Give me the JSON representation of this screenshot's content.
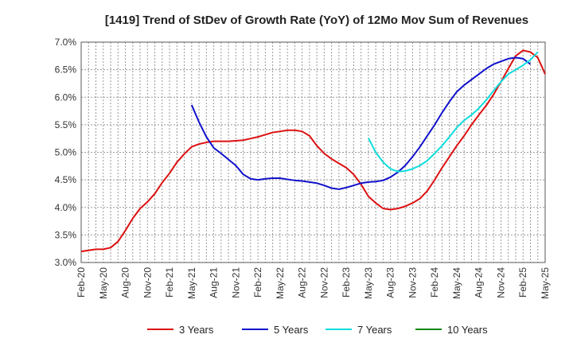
{
  "chart_data": {
    "type": "line",
    "title": "[1419]  Trend of StDev of Growth Rate (YoY) of 12Mo Mov Sum of Revenues",
    "xlabel": "",
    "ylabel": "",
    "ylim": [
      3.0,
      7.0
    ],
    "y_ticks": [
      "3.0%",
      "3.5%",
      "4.0%",
      "4.5%",
      "5.0%",
      "5.5%",
      "6.0%",
      "6.5%",
      "7.0%"
    ],
    "x_ticks": [
      "Feb-20",
      "May-20",
      "Aug-20",
      "Nov-20",
      "Feb-21",
      "May-21",
      "Aug-21",
      "Nov-21",
      "Feb-22",
      "May-22",
      "Aug-22",
      "Nov-22",
      "Feb-23",
      "May-23",
      "Aug-23",
      "Nov-23",
      "Feb-24",
      "May-24",
      "Aug-24",
      "Nov-24",
      "Feb-25",
      "May-25"
    ],
    "x_start": "Feb-20",
    "grid": true,
    "legend_position": "bottom",
    "series": [
      {
        "name": "3 Years",
        "color": "#dd1111",
        "start_index": 0,
        "values": [
          3.2,
          3.22,
          3.24,
          3.24,
          3.27,
          3.38,
          3.58,
          3.8,
          3.98,
          4.1,
          4.25,
          4.45,
          4.62,
          4.82,
          4.97,
          5.1,
          5.15,
          5.18,
          5.2,
          5.2,
          5.2,
          5.21,
          5.22,
          5.25,
          5.28,
          5.32,
          5.36,
          5.38,
          5.4,
          5.4,
          5.38,
          5.3,
          5.12,
          4.98,
          4.88,
          4.8,
          4.72,
          4.6,
          4.42,
          4.2,
          4.08,
          3.98,
          3.96,
          3.98,
          4.02,
          4.08,
          4.16,
          4.3,
          4.5,
          4.72,
          4.92,
          5.12,
          5.3,
          5.5,
          5.68,
          5.85,
          6.05,
          6.28,
          6.52,
          6.75,
          6.85,
          6.82,
          6.72,
          6.42
        ]
      },
      {
        "name": "5 Years",
        "color": "#1111cc",
        "start_index": 15,
        "values": [
          5.86,
          5.55,
          5.28,
          5.08,
          4.98,
          4.87,
          4.76,
          4.6,
          4.52,
          4.5,
          4.52,
          4.53,
          4.53,
          4.51,
          4.49,
          4.48,
          4.46,
          4.44,
          4.4,
          4.35,
          4.33,
          4.36,
          4.4,
          4.44,
          4.46,
          4.47,
          4.49,
          4.55,
          4.64,
          4.76,
          4.92,
          5.1,
          5.3,
          5.5,
          5.72,
          5.92,
          6.1,
          6.22,
          6.32,
          6.42,
          6.52,
          6.6,
          6.65,
          6.7,
          6.72,
          6.7,
          6.6
        ]
      },
      {
        "name": "7 Years",
        "color": "#11dddd",
        "start_index": 39,
        "values": [
          5.26,
          5.0,
          4.82,
          4.7,
          4.65,
          4.66,
          4.7,
          4.76,
          4.85,
          4.98,
          5.12,
          5.28,
          5.45,
          5.58,
          5.68,
          5.8,
          5.95,
          6.12,
          6.28,
          6.42,
          6.5,
          6.58,
          6.68,
          6.82
        ]
      },
      {
        "name": "10 Years",
        "color": "#118811",
        "start_index": 0,
        "values": []
      }
    ]
  }
}
